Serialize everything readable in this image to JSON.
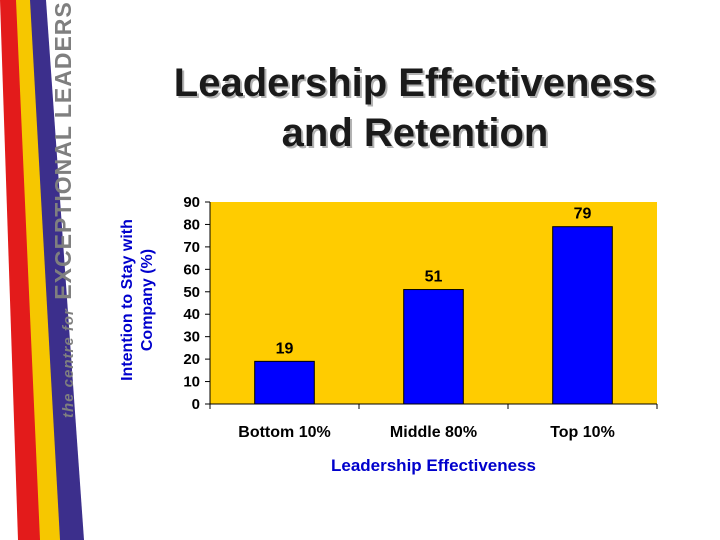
{
  "slide": {
    "title": "Leadership Effectiveness and Retention",
    "brand_small": "the centre for",
    "brand_big": "EXCEPTIONAL LEADERSHIP"
  },
  "colors": {
    "plot_bg": "#ffcc00",
    "bar": "#0000ff",
    "axis_title": "#0000cc",
    "ribbon_red": "#e31b1b",
    "ribbon_yellow": "#f6c700",
    "ribbon_purple": "#3c2f8c"
  },
  "chart_data": {
    "type": "bar",
    "title": "",
    "categories": [
      "Bottom 10%",
      "Middle 80%",
      "Top 10%"
    ],
    "values": [
      19,
      51,
      79
    ],
    "data_labels": [
      "19",
      "51",
      "79"
    ],
    "xlabel": "Leadership Effectiveness",
    "ylabel": "Intention to Stay with Company (%)",
    "ylim": [
      0,
      90
    ],
    "yticks": [
      0,
      10,
      20,
      30,
      40,
      50,
      60,
      70,
      80,
      90
    ],
    "grid": false,
    "legend": "none"
  }
}
